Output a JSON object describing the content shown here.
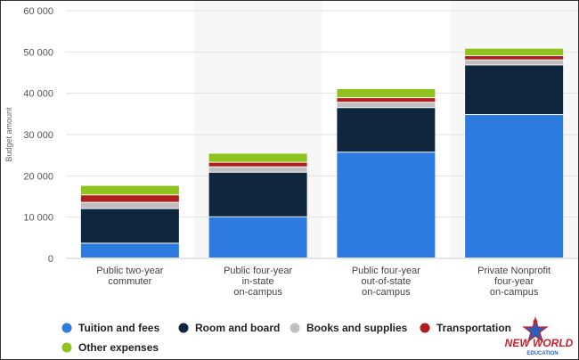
{
  "chart_data": {
    "type": "bar",
    "stacked": true,
    "categories": [
      [
        "Public two-year",
        "commuter"
      ],
      [
        "Public four-year",
        "in-state",
        "on-campus"
      ],
      [
        "Public four-year",
        "out-of-state",
        "on-campus"
      ],
      [
        "Private Nonprofit",
        "four-year",
        "on-campus"
      ]
    ],
    "series": [
      {
        "name": "Tuition and fees",
        "color": "#2d7be0",
        "values": [
          3570,
          9970,
          25620,
          34740
        ]
      },
      {
        "name": "Room and board",
        "color": "#10263f",
        "values": [
          8400,
          10800,
          10800,
          12000
        ]
      },
      {
        "name": "Books and supplies",
        "color": "#bfbfbf",
        "values": [
          1500,
          1300,
          1300,
          1250
        ]
      },
      {
        "name": "Transportation",
        "color": "#b01c1c",
        "values": [
          1800,
          1100,
          1100,
          1000
        ]
      },
      {
        "name": "Other expenses",
        "color": "#8fc31f",
        "values": [
          2300,
          2200,
          2200,
          1800
        ]
      }
    ],
    "ylabel": "Budget amount",
    "ylim": [
      0,
      60000
    ],
    "yticks": [
      "0",
      "10 000",
      "20 000",
      "30 000",
      "40 000",
      "50 000",
      "60 000"
    ],
    "grid": true,
    "legend_position": "bottom"
  },
  "logo": {
    "line1": "NEW WORLD",
    "line2": "EDUCATION"
  }
}
